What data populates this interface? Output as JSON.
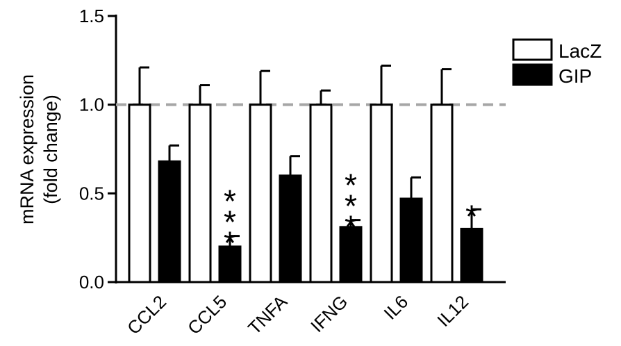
{
  "chart_data": {
    "type": "bar",
    "categories": [
      "CCL2",
      "CCL5",
      "TNFA",
      "IFNG",
      "IL6",
      "IL12"
    ],
    "series": [
      {
        "name": "LacZ",
        "values": [
          1.0,
          1.0,
          1.0,
          1.0,
          1.0,
          1.0
        ],
        "errors": [
          0.21,
          0.11,
          0.19,
          0.08,
          0.22,
          0.2
        ],
        "color": "#ffffff"
      },
      {
        "name": "GIP",
        "values": [
          0.68,
          0.2,
          0.6,
          0.31,
          0.47,
          0.3
        ],
        "errors": [
          0.09,
          0.06,
          0.11,
          0.04,
          0.12,
          0.11
        ],
        "color": "#000000"
      }
    ],
    "significance": [
      "",
      "***",
      "",
      "***",
      "",
      "*"
    ],
    "reference_line": 1.0,
    "ylabel_lines": [
      "mRNA expression",
      "(fold change)"
    ],
    "xlabel": "",
    "ylim": [
      0.0,
      1.5
    ],
    "yticks": [
      "0.0",
      "0.5",
      "1.0",
      "1.5"
    ],
    "legend_position": "top-right",
    "grid": false
  }
}
